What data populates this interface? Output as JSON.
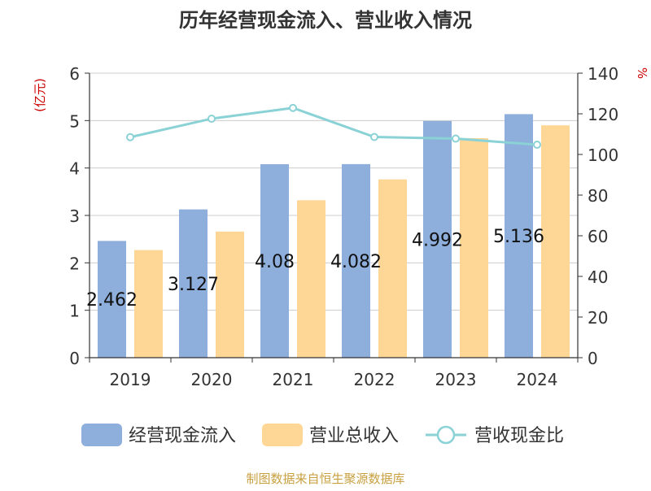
{
  "chart_data": {
    "type": "bar",
    "title": "历年经营现金流入、营业收入情况",
    "categories": [
      "2019",
      "2020",
      "2021",
      "2022",
      "2023",
      "2024"
    ],
    "y_left": {
      "label": "(亿元)",
      "range": [
        0,
        6
      ],
      "ticks": [
        0,
        1,
        2,
        3,
        4,
        5,
        6
      ]
    },
    "y_right": {
      "label": "%",
      "range": [
        0,
        140
      ],
      "ticks": [
        0,
        20,
        40,
        60,
        80,
        100,
        120,
        140
      ]
    },
    "grid": true,
    "legend_position": "bottom",
    "series": [
      {
        "name": "经营现金流入",
        "type": "bar",
        "axis": "left",
        "color": "#8eaedb",
        "values": [
          2.462,
          3.127,
          4.08,
          4.082,
          4.992,
          5.136
        ],
        "labels": [
          "2.462",
          "3.127",
          "4.08",
          "4.082",
          "4.992",
          "5.136"
        ]
      },
      {
        "name": "营业总收入",
        "type": "bar",
        "axis": "left",
        "color": "#fed797",
        "values": [
          2.27,
          2.66,
          3.32,
          3.76,
          4.63,
          4.9
        ]
      },
      {
        "name": "营收现金比",
        "type": "line",
        "axis": "right",
        "color": "#8ad2d6",
        "values": [
          108.5,
          117.6,
          122.9,
          108.6,
          107.8,
          104.8
        ]
      }
    ]
  },
  "footer": {
    "source": "制图数据来自恒生聚源数据库"
  },
  "colors": {
    "axis_label": "#cc0000",
    "text": "#333333",
    "grid": "#cccccc",
    "source": "#c8a040"
  }
}
